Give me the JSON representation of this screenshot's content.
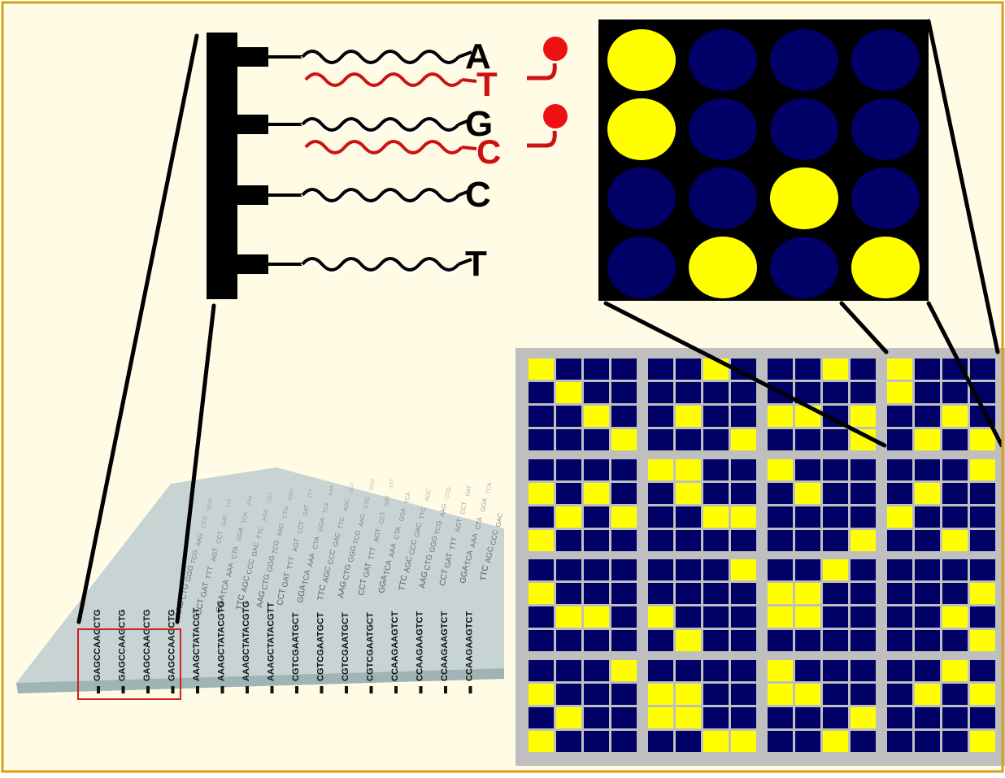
{
  "colors": {
    "background": "#fffbe5",
    "frame": "#d4a017",
    "spot_on": "#ffff00",
    "spot_off": "#000066",
    "zoom_bg": "#000000",
    "grid_bg": "#bfbfbf",
    "probe": "#000000",
    "target": "#cc1111",
    "chip": "#c8d4d4"
  },
  "probes": [
    {
      "base": "A",
      "target": "T",
      "hybridized": true
    },
    {
      "base": "G",
      "target": "C",
      "hybridized": true
    },
    {
      "base": "C",
      "target": "",
      "hybridized": false
    },
    {
      "base": "T",
      "target": "",
      "hybridized": false
    }
  ],
  "zoom_grid": [
    [
      1,
      0,
      0,
      0
    ],
    [
      1,
      0,
      0,
      0
    ],
    [
      0,
      0,
      1,
      0
    ],
    [
      0,
      1,
      0,
      1
    ]
  ],
  "array_blocks": [
    [
      [
        [
          1,
          0,
          0,
          0
        ],
        [
          0,
          1,
          0,
          0
        ],
        [
          0,
          0,
          1,
          0
        ],
        [
          0,
          0,
          0,
          1
        ]
      ],
      [
        [
          0,
          0,
          1,
          0
        ],
        [
          0,
          0,
          0,
          0
        ],
        [
          0,
          1,
          0,
          0
        ],
        [
          0,
          0,
          0,
          1
        ]
      ],
      [
        [
          0,
          0,
          1,
          0
        ],
        [
          0,
          0,
          0,
          0
        ],
        [
          1,
          1,
          0,
          1
        ],
        [
          0,
          0,
          0,
          1
        ]
      ],
      [
        [
          1,
          0,
          0,
          0
        ],
        [
          1,
          0,
          0,
          0
        ],
        [
          0,
          0,
          1,
          0
        ],
        [
          0,
          1,
          0,
          1
        ]
      ]
    ],
    [
      [
        [
          0,
          0,
          0,
          0
        ],
        [
          1,
          0,
          1,
          0
        ],
        [
          0,
          1,
          0,
          1
        ],
        [
          1,
          0,
          0,
          0
        ]
      ],
      [
        [
          1,
          1,
          0,
          0
        ],
        [
          0,
          1,
          0,
          0
        ],
        [
          0,
          0,
          1,
          1
        ],
        [
          0,
          0,
          0,
          0
        ]
      ],
      [
        [
          1,
          0,
          0,
          0
        ],
        [
          0,
          1,
          0,
          0
        ],
        [
          0,
          0,
          0,
          0
        ],
        [
          0,
          0,
          0,
          1
        ]
      ],
      [
        [
          0,
          0,
          0,
          1
        ],
        [
          0,
          1,
          0,
          0
        ],
        [
          1,
          0,
          0,
          0
        ],
        [
          0,
          0,
          1,
          0
        ]
      ]
    ],
    [
      [
        [
          0,
          0,
          0,
          0
        ],
        [
          1,
          0,
          0,
          0
        ],
        [
          0,
          1,
          1,
          0
        ],
        [
          0,
          0,
          0,
          0
        ]
      ],
      [
        [
          0,
          0,
          0,
          1
        ],
        [
          0,
          0,
          0,
          0
        ],
        [
          1,
          0,
          0,
          0
        ],
        [
          0,
          1,
          0,
          0
        ]
      ],
      [
        [
          0,
          0,
          1,
          0
        ],
        [
          1,
          1,
          0,
          0
        ],
        [
          1,
          1,
          0,
          0
        ],
        [
          0,
          0,
          0,
          0
        ]
      ],
      [
        [
          0,
          0,
          0,
          0
        ],
        [
          0,
          0,
          0,
          1
        ],
        [
          0,
          0,
          1,
          0
        ],
        [
          0,
          0,
          0,
          1
        ]
      ]
    ],
    [
      [
        [
          0,
          0,
          0,
          1
        ],
        [
          1,
          0,
          0,
          0
        ],
        [
          0,
          1,
          0,
          0
        ],
        [
          1,
          0,
          0,
          0
        ]
      ],
      [
        [
          0,
          0,
          0,
          0
        ],
        [
          1,
          1,
          0,
          0
        ],
        [
          1,
          1,
          0,
          0
        ],
        [
          0,
          0,
          1,
          1
        ]
      ],
      [
        [
          1,
          0,
          0,
          0
        ],
        [
          1,
          1,
          0,
          0
        ],
        [
          0,
          0,
          0,
          1
        ],
        [
          0,
          0,
          1,
          0
        ]
      ],
      [
        [
          0,
          0,
          1,
          0
        ],
        [
          0,
          1,
          0,
          1
        ],
        [
          0,
          0,
          0,
          0
        ],
        [
          0,
          0,
          0,
          1
        ]
      ]
    ]
  ],
  "chip_sequences": [
    "GAGCCAAGCTG",
    "GAGCCAAGCTG",
    "GAGCCAAGCTG",
    "GAGCCAAGCTG",
    "AAAGCTATACGT",
    "AAAGCTATACGTG",
    "AAAGCTATACGTG",
    "AAAGCTATACGTT",
    "CGTCGAATGCT",
    "CGTCGAATGCT",
    "CGTCGAATGCT",
    "CGTCGAATGCT",
    "CCAAGAAGTCT",
    "CCAAGAAGTCT",
    "CCAAGAAGTCT",
    "CCAAGAAGTCT"
  ]
}
